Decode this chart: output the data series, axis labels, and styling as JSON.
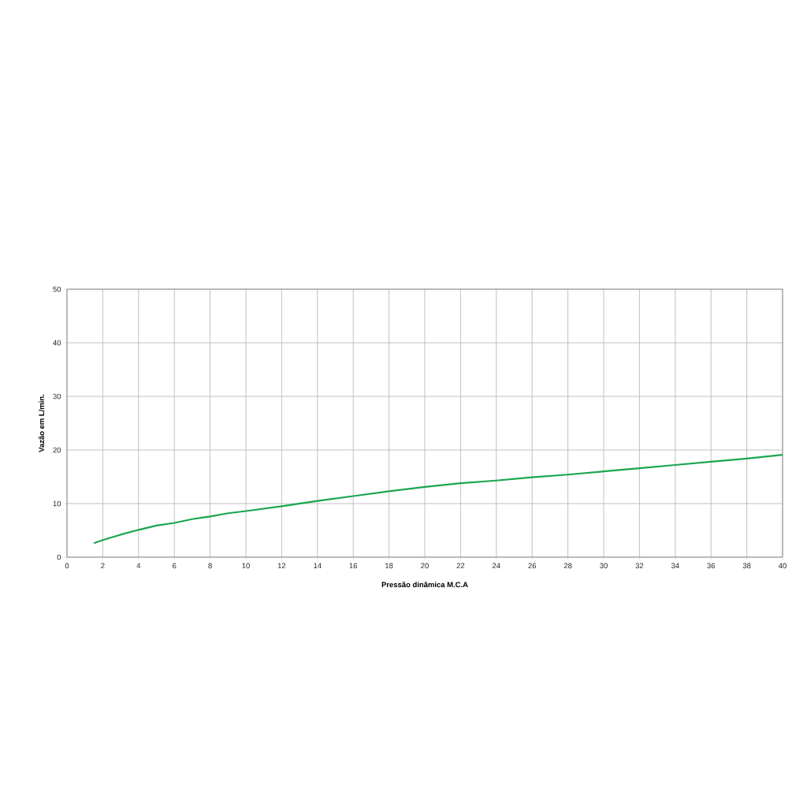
{
  "chart_data": {
    "type": "line",
    "xlabel": "Pressão dinâmica M.C.A",
    "ylabel": "Vazão em L/min.",
    "x": [
      1.5,
      2,
      3,
      4,
      5,
      6,
      7,
      8,
      9,
      10,
      12,
      14,
      16,
      18,
      20,
      22,
      24,
      26,
      28,
      30,
      32,
      34,
      36,
      38,
      40
    ],
    "series": [
      {
        "color": "#1aa64f",
        "values": [
          2.6,
          3.2,
          4.2,
          5.1,
          5.9,
          6.4,
          7.1,
          7.6,
          8.2,
          8.6,
          9.5,
          10.5,
          11.4,
          12.3,
          13.1,
          13.8,
          14.3,
          14.9,
          15.4,
          16.0,
          16.6,
          17.2,
          17.8,
          18.4,
          19.1
        ]
      }
    ],
    "xlim": [
      0,
      40
    ],
    "ylim": [
      0,
      50
    ],
    "xticks": [
      0,
      2,
      4,
      6,
      8,
      10,
      12,
      14,
      16,
      18,
      20,
      22,
      24,
      26,
      28,
      30,
      32,
      34,
      36,
      38,
      40
    ],
    "yticks": [
      0,
      10,
      20,
      30,
      40,
      50
    ],
    "grid": true,
    "marker": "none",
    "line_style": "solid"
  }
}
